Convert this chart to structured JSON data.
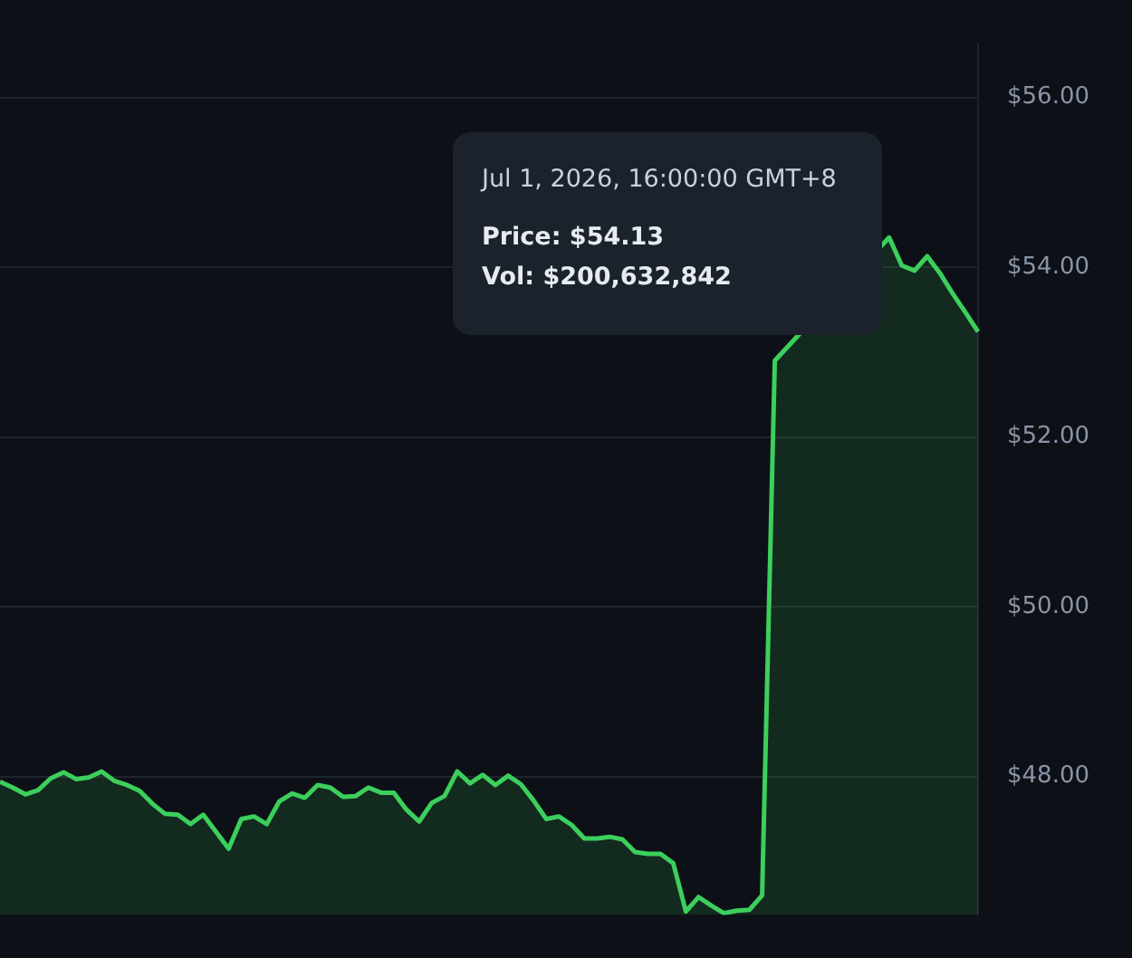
{
  "chart_data": {
    "type": "area",
    "categories": [
      null,
      null,
      null,
      null,
      null,
      null,
      null,
      null,
      null,
      null,
      null,
      null,
      null,
      null,
      null,
      null,
      null,
      null,
      null,
      null,
      null,
      null,
      null,
      null,
      null,
      null,
      null,
      null,
      null,
      null,
      null,
      null,
      null,
      null,
      null,
      null,
      null,
      null,
      null,
      null,
      null,
      null,
      null,
      null,
      null,
      null,
      null,
      null,
      null,
      null,
      null,
      null,
      null,
      null,
      null,
      null,
      null,
      null,
      null,
      null,
      null,
      null,
      null,
      null,
      null,
      null,
      null,
      null,
      null,
      null,
      null,
      null,
      null,
      null,
      null,
      null,
      null,
      null
    ],
    "series": [
      {
        "color": "#3ccf5c",
        "values": [
          47.94,
          47.87,
          47.79,
          47.84,
          47.98,
          48.05,
          47.97,
          47.99,
          48.06,
          47.95,
          47.9,
          47.83,
          47.68,
          47.56,
          47.55,
          47.44,
          47.55,
          47.35,
          47.15,
          47.5,
          47.53,
          47.44,
          47.71,
          47.8,
          47.75,
          47.9,
          47.87,
          47.76,
          47.77,
          47.87,
          47.81,
          47.81,
          47.61,
          47.47,
          47.69,
          47.77,
          48.06,
          47.92,
          48.02,
          47.9,
          48.01,
          47.91,
          47.72,
          47.5,
          47.53,
          47.43,
          47.27,
          47.27,
          47.29,
          47.26,
          47.11,
          47.09,
          47.09,
          46.98,
          46.41,
          46.58,
          46.48,
          46.39,
          46.42,
          46.43,
          46.6,
          52.9,
          null,
          null,
          null,
          null,
          null,
          null,
          null,
          null,
          54.35,
          54.02,
          53.96,
          54.13,
          53.93,
          53.69,
          53.47,
          53.24
        ]
      }
    ],
    "ylim": [
      46.37,
      56.64
    ],
    "yticks": [
      {
        "value": 48,
        "label": "$48.00"
      },
      {
        "value": 50,
        "label": "$50.00"
      },
      {
        "value": 52,
        "label": "$52.00"
      },
      {
        "value": 54,
        "label": "$54.00"
      },
      {
        "value": 56,
        "label": "$56.00"
      }
    ],
    "grid": "y",
    "tick_labels": "y",
    "marker": "none",
    "annotations": [
      "Jul 1, 2026, 16:00:00 GMT+8",
      "Price: $54.13",
      "Vol: $200,632,842"
    ]
  }
}
